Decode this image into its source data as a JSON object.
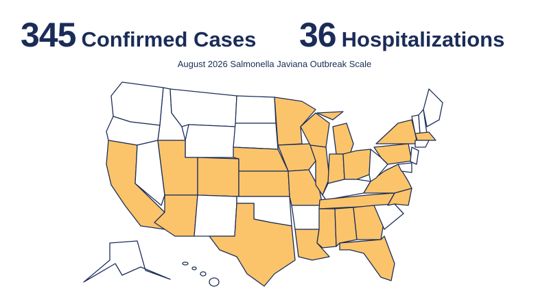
{
  "stats": [
    {
      "value": 345,
      "label": "Confirmed Cases"
    },
    {
      "value": 36,
      "label": "Hospitalizations"
    }
  ],
  "subtitle": "August 2026 Salmonella Javiana Outbreak Scale"
}
